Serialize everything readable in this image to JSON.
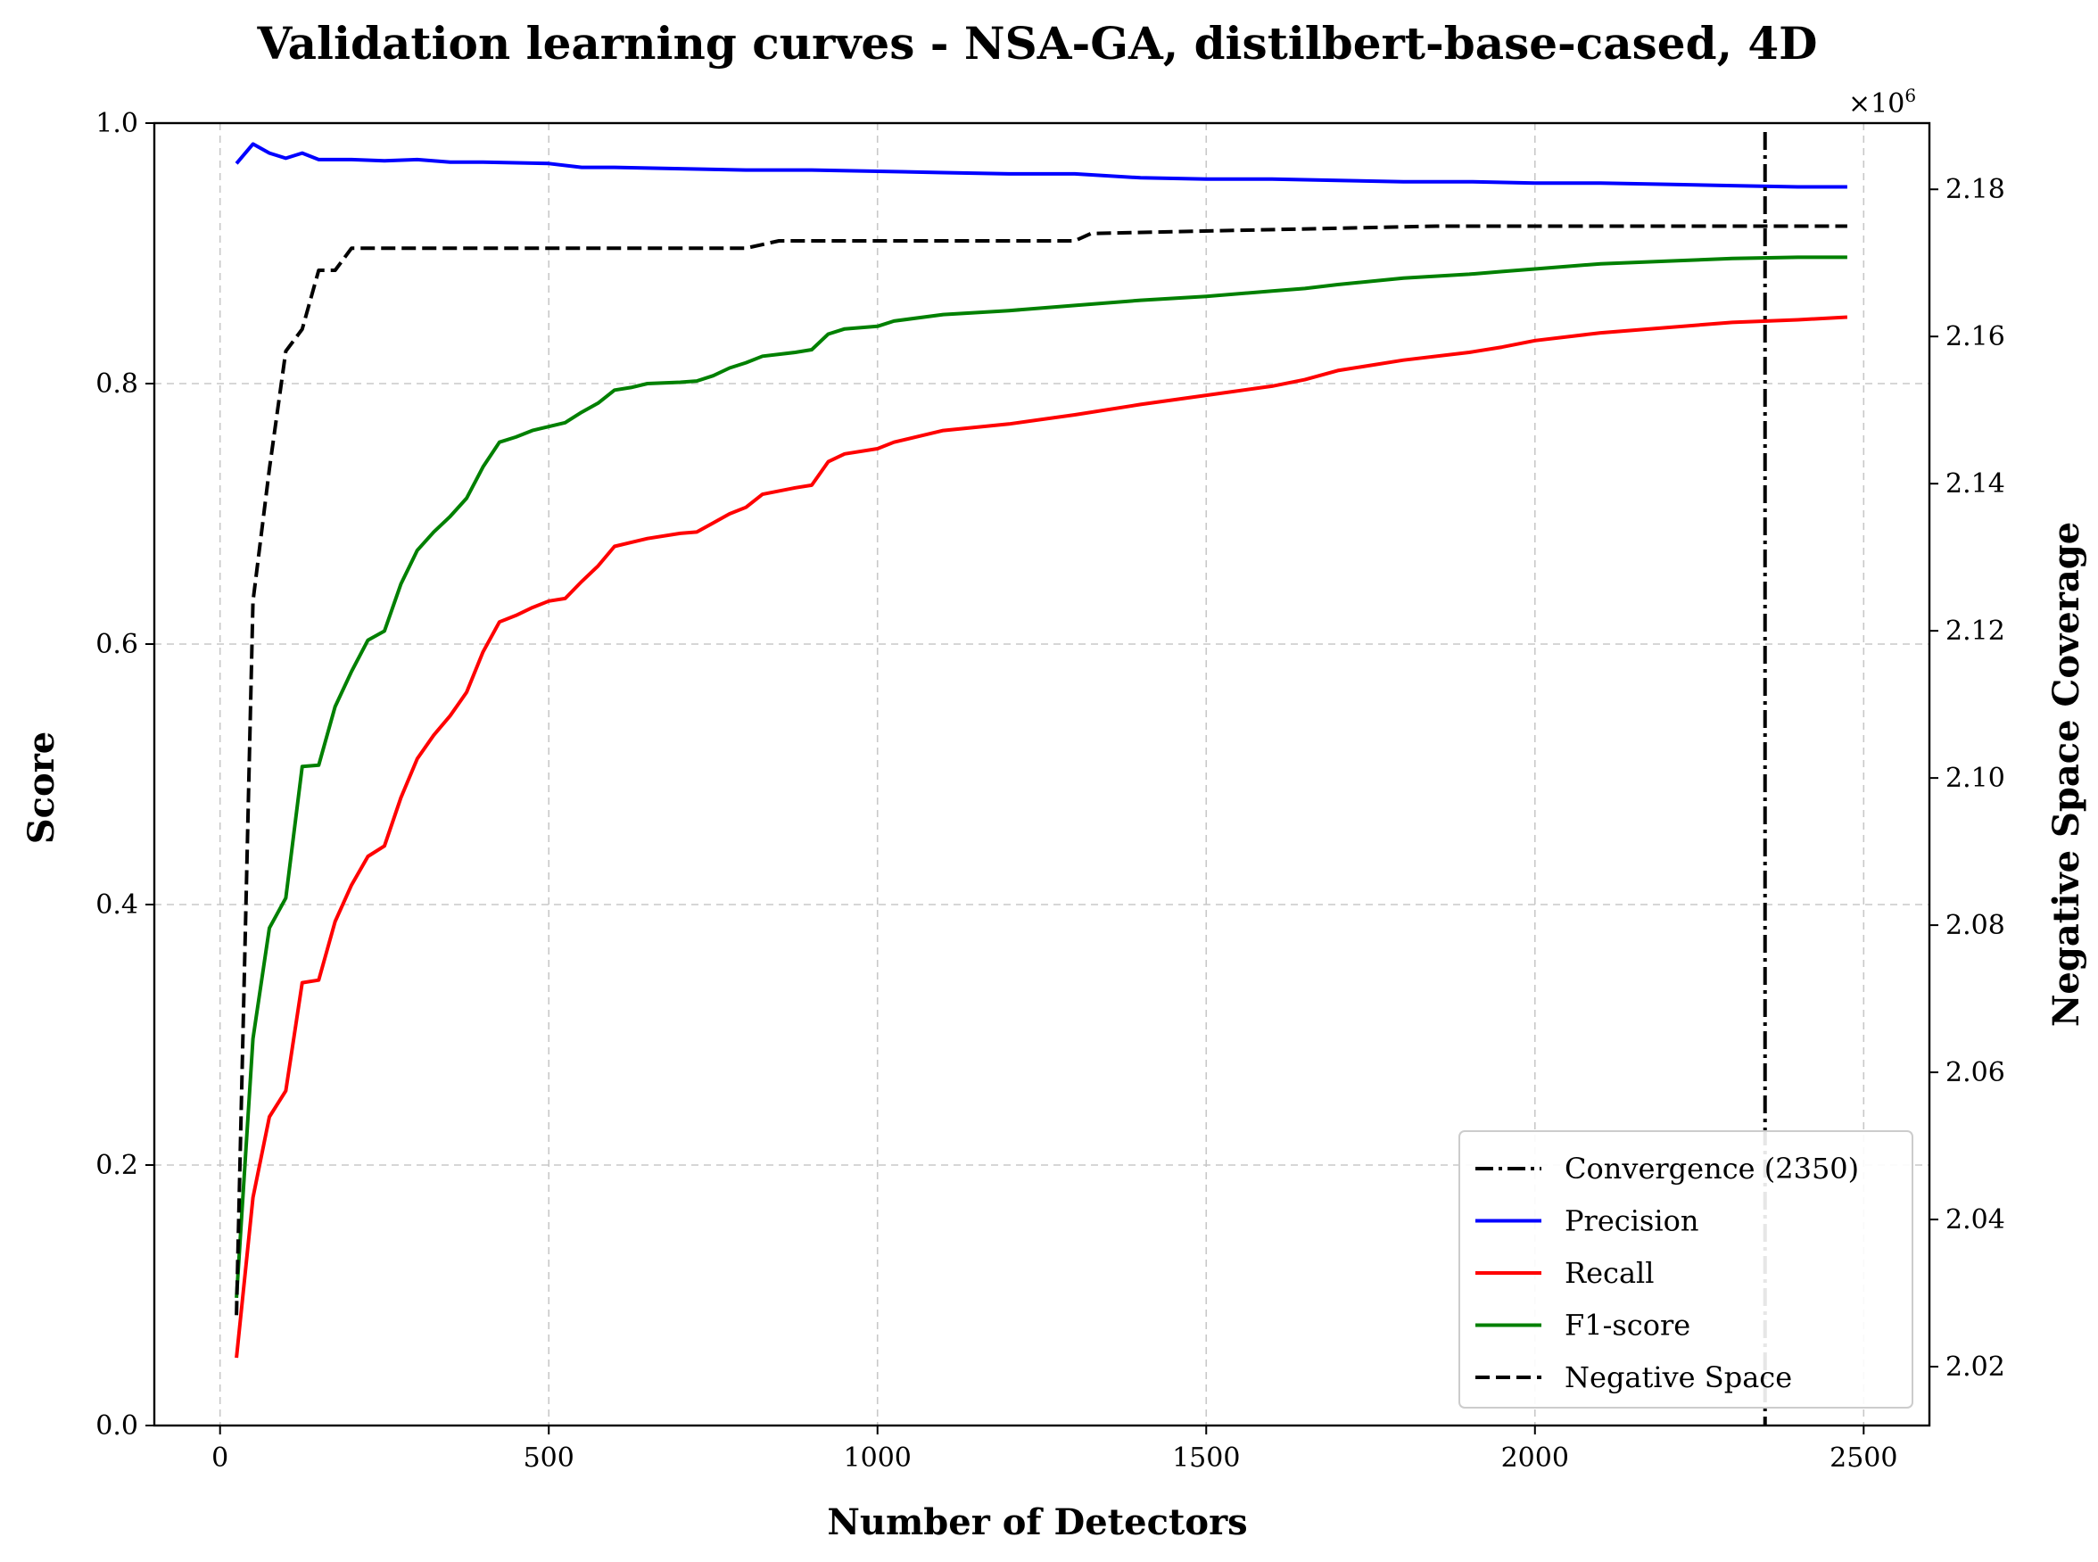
{
  "chart_data": {
    "type": "line",
    "title": "Validation learning curves - NSA-GA, distilbert-base-cased, 4D",
    "xlabel": "Number of Detectors",
    "ylabel": "Score",
    "y2label": "Negative Space Coverage",
    "y2_offset_label": "×10",
    "y2_offset_exponent": "6",
    "xlim": [
      -100,
      2600
    ],
    "ylim": [
      0,
      1
    ],
    "y2lim": [
      2.012,
      2.189
    ],
    "y2_scale": 1000000,
    "grid": true,
    "legend_position": "lower-right",
    "xticks": [
      0,
      500,
      1000,
      1500,
      2000,
      2500
    ],
    "xtick_labels": [
      "0",
      "500",
      "1000",
      "1500",
      "2000",
      "2500"
    ],
    "yticks": [
      0.0,
      0.2,
      0.4,
      0.6,
      0.8,
      1.0
    ],
    "ytick_labels": [
      "0.0",
      "0.2",
      "0.4",
      "0.6",
      "0.8",
      "1.0"
    ],
    "y2ticks": [
      2.02,
      2.04,
      2.06,
      2.08,
      2.1,
      2.12,
      2.14,
      2.16,
      2.18
    ],
    "y2tick_labels": [
      "2.02",
      "2.04",
      "2.06",
      "2.08",
      "2.10",
      "2.12",
      "2.14",
      "2.16",
      "2.18"
    ],
    "convergence": {
      "x": 2350,
      "label": "Convergence (2350)",
      "color": "#000000"
    },
    "series": [
      {
        "name": "Precision",
        "color": "#0000ff",
        "axis": "left",
        "style": "solid",
        "x": [
          25,
          50,
          75,
          100,
          125,
          150,
          200,
          250,
          300,
          350,
          400,
          500,
          550,
          600,
          700,
          800,
          900,
          1000,
          1100,
          1200,
          1300,
          1400,
          1500,
          1600,
          1700,
          1800,
          1900,
          2000,
          2100,
          2200,
          2300,
          2400,
          2475
        ],
        "y": [
          0.969,
          0.984,
          0.977,
          0.973,
          0.977,
          0.972,
          0.972,
          0.971,
          0.972,
          0.97,
          0.97,
          0.969,
          0.966,
          0.966,
          0.965,
          0.964,
          0.964,
          0.963,
          0.962,
          0.961,
          0.961,
          0.958,
          0.957,
          0.957,
          0.956,
          0.955,
          0.955,
          0.954,
          0.954,
          0.953,
          0.952,
          0.951,
          0.951
        ]
      },
      {
        "name": "Recall",
        "color": "#ff0000",
        "axis": "left",
        "style": "solid",
        "x": [
          25,
          50,
          75,
          100,
          125,
          150,
          175,
          200,
          225,
          250,
          275,
          300,
          325,
          350,
          375,
          400,
          425,
          450,
          475,
          500,
          525,
          550,
          575,
          600,
          625,
          650,
          700,
          725,
          750,
          775,
          800,
          825,
          875,
          900,
          925,
          950,
          1000,
          1025,
          1100,
          1200,
          1300,
          1400,
          1500,
          1600,
          1650,
          1700,
          1800,
          1900,
          1950,
          2000,
          2100,
          2200,
          2300,
          2400,
          2475
        ],
        "y": [
          0.052,
          0.175,
          0.237,
          0.257,
          0.34,
          0.342,
          0.387,
          0.415,
          0.437,
          0.445,
          0.482,
          0.512,
          0.53,
          0.545,
          0.563,
          0.594,
          0.617,
          0.622,
          0.628,
          0.633,
          0.635,
          0.648,
          0.66,
          0.675,
          0.678,
          0.681,
          0.685,
          0.686,
          0.693,
          0.7,
          0.705,
          0.715,
          0.72,
          0.722,
          0.74,
          0.746,
          0.75,
          0.755,
          0.764,
          0.769,
          0.776,
          0.784,
          0.791,
          0.798,
          0.803,
          0.81,
          0.818,
          0.824,
          0.828,
          0.833,
          0.839,
          0.843,
          0.847,
          0.849,
          0.851
        ]
      },
      {
        "name": "F1-score",
        "color": "#008000",
        "axis": "left",
        "style": "solid",
        "x": [
          25,
          50,
          75,
          100,
          125,
          150,
          175,
          200,
          225,
          250,
          275,
          300,
          325,
          350,
          375,
          400,
          425,
          450,
          475,
          500,
          525,
          550,
          575,
          600,
          625,
          650,
          700,
          725,
          750,
          775,
          800,
          825,
          875,
          900,
          925,
          950,
          1000,
          1025,
          1100,
          1200,
          1300,
          1400,
          1500,
          1600,
          1650,
          1700,
          1800,
          1900,
          1950,
          2000,
          2100,
          2200,
          2300,
          2400,
          2475
        ],
        "y": [
          0.098,
          0.297,
          0.382,
          0.405,
          0.506,
          0.507,
          0.552,
          0.579,
          0.603,
          0.61,
          0.646,
          0.672,
          0.686,
          0.698,
          0.712,
          0.736,
          0.755,
          0.759,
          0.764,
          0.767,
          0.77,
          0.778,
          0.785,
          0.795,
          0.797,
          0.8,
          0.801,
          0.802,
          0.806,
          0.812,
          0.816,
          0.821,
          0.824,
          0.826,
          0.838,
          0.842,
          0.844,
          0.848,
          0.853,
          0.856,
          0.86,
          0.864,
          0.867,
          0.871,
          0.873,
          0.876,
          0.881,
          0.884,
          0.886,
          0.888,
          0.892,
          0.894,
          0.896,
          0.897,
          0.897
        ]
      },
      {
        "name": "Negative Space",
        "color": "#000000",
        "axis": "right",
        "style": "dashed",
        "x": [
          25,
          50,
          75,
          100,
          125,
          150,
          175,
          200,
          300,
          500,
          800,
          850,
          1300,
          1325,
          1850,
          2475
        ],
        "y": [
          2.027,
          2.124,
          2.142,
          2.158,
          2.161,
          2.169,
          2.169,
          2.172,
          2.172,
          2.172,
          2.172,
          2.173,
          2.173,
          2.174,
          2.175,
          2.175
        ]
      }
    ]
  }
}
